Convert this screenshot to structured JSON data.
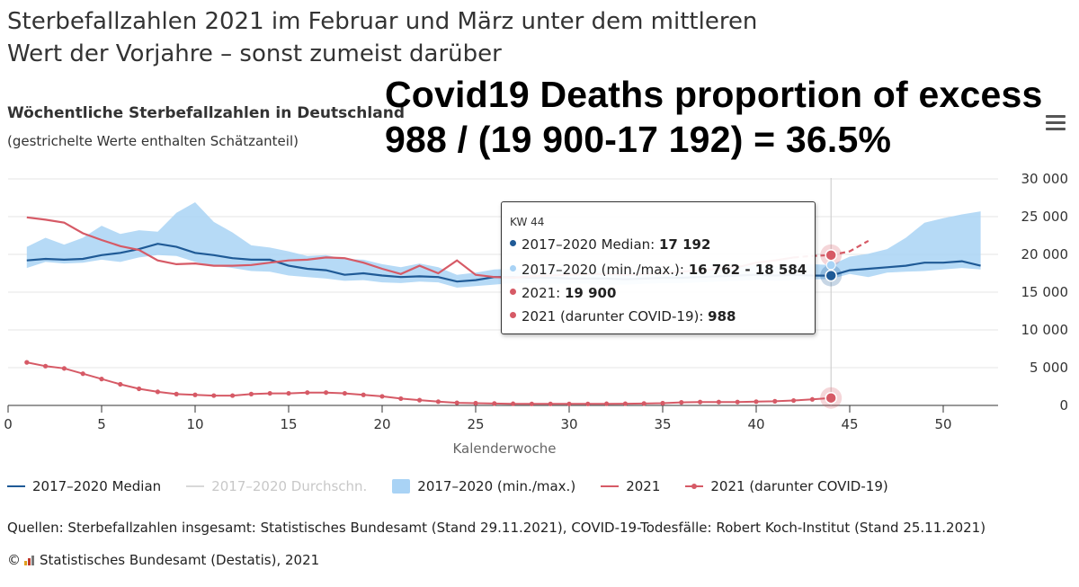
{
  "headline": {
    "line1": "Sterbefallzahlen 2021 im Februar und März unter dem mittleren",
    "line2": "Wert der Vorjahre – sonst zumeist darüber"
  },
  "overlay": {
    "line1": "Covid19 Deaths proportion of excess",
    "line2": "988 / (19 900-17 192) = 36.5%"
  },
  "subtitle": "Wöchentliche Sterbefallzahlen in Deutschland",
  "subnote": "(gestrichelte Werte enthalten Schätzanteil)",
  "tooltip": {
    "week": "KW 44",
    "median_label": "2017–2020 Median: ",
    "median_value": "17 192",
    "range_label": "2017–2020 (min./max.): ",
    "range_value": "16 762 - 18 584",
    "y2021_label": "2021: ",
    "y2021_value": "19 900",
    "covid_label": "2021 (darunter COVID-19): ",
    "covid_value": "988"
  },
  "legend": {
    "median": "2017–2020 Median",
    "mean": "2017–2020 Durchschn.",
    "range": "2017–2020 (min./max.)",
    "y2021": "2021",
    "covid": "2021 (darunter COVID-19)"
  },
  "source": "Quellen: Sterbefallzahlen insgesamt: Statistisches Bundesamt (Stand 29.11.2021), COVID-19-Todesfälle: Robert Koch-Institut (Stand 25.11.2021)",
  "copyright": {
    "symbol": "©",
    "text": "Statistisches Bundesamt (Destatis), 2021"
  },
  "colors": {
    "median": "#1f5a96",
    "range": "#a9d3f5",
    "y2021": "#d65a66",
    "covid": "#d65a66",
    "mean": "#d8d8d8"
  },
  "chart_data": {
    "type": "line",
    "title": "Wöchentliche Sterbefallzahlen in Deutschland",
    "xlabel": "Kalenderwoche",
    "ylabel": "",
    "xlim": [
      0,
      52.5
    ],
    "ylim": [
      0,
      30000
    ],
    "x_ticks": [
      0,
      5,
      10,
      15,
      20,
      25,
      30,
      35,
      40,
      45,
      50
    ],
    "y_ticks": [
      0,
      5000,
      10000,
      15000,
      20000,
      25000,
      30000
    ],
    "y_tick_labels": [
      "0",
      "5 000",
      "10 000",
      "15 000",
      "20 000",
      "25 000",
      "30 000"
    ],
    "highlight_week": 44,
    "weeks": [
      1,
      2,
      3,
      4,
      5,
      6,
      7,
      8,
      9,
      10,
      11,
      12,
      13,
      14,
      15,
      16,
      17,
      18,
      19,
      20,
      21,
      22,
      23,
      24,
      25,
      26,
      27,
      28,
      29,
      30,
      31,
      32,
      33,
      34,
      35,
      36,
      37,
      38,
      39,
      40,
      41,
      42,
      43,
      44,
      45,
      46,
      47,
      48,
      49,
      50,
      51,
      52
    ],
    "series": [
      {
        "name": "2017–2020 Median",
        "values": [
          19200,
          19400,
          19300,
          19400,
          19900,
          20200,
          20700,
          21400,
          21000,
          20200,
          19900,
          19500,
          19300,
          19300,
          18500,
          18100,
          17900,
          17300,
          17500,
          17200,
          17000,
          17100,
          17000,
          16400,
          16600,
          17000,
          17000,
          16900,
          16900,
          16800,
          16800,
          16800,
          16700,
          16800,
          16900,
          16900,
          17000,
          17100,
          17200,
          17300,
          17200,
          17300,
          17200,
          17192,
          17900,
          18100,
          18300,
          18500,
          18900,
          18900,
          19100,
          18500
        ]
      },
      {
        "name": "2017–2020 (min./max.)",
        "min": [
          18200,
          19000,
          18800,
          18900,
          19300,
          19000,
          19600,
          19900,
          19800,
          19000,
          18500,
          18200,
          17800,
          17700,
          17200,
          17000,
          16800,
          16500,
          16600,
          16300,
          16200,
          16400,
          16300,
          15600,
          15800,
          16000,
          16200,
          16200,
          16100,
          16100,
          16100,
          16000,
          16000,
          16100,
          16200,
          16200,
          16300,
          16400,
          16500,
          16600,
          16500,
          16600,
          16700,
          16762,
          17400,
          17000,
          17600,
          17700,
          17800,
          18000,
          18200,
          18000
        ],
        "max": [
          21000,
          22200,
          21300,
          22200,
          23800,
          22700,
          23200,
          23000,
          25500,
          26900,
          24300,
          22900,
          21200,
          20900,
          20400,
          19800,
          19900,
          19400,
          19300,
          18700,
          18300,
          18800,
          18300,
          17300,
          17600,
          18000,
          18100,
          17900,
          18200,
          17900,
          17900,
          17800,
          17700,
          17800,
          18000,
          18000,
          18000,
          18200,
          18300,
          18600,
          18400,
          18800,
          18700,
          18584,
          19700,
          20100,
          20700,
          22200,
          24200,
          24800,
          25300,
          25700
        ]
      },
      {
        "name": "2021",
        "values": [
          24900,
          24600,
          24200,
          22800,
          21900,
          21100,
          20600,
          19200,
          18700,
          18800,
          18500,
          18500,
          18600,
          18900,
          19200,
          19300,
          19600,
          19500,
          18900,
          18100,
          17400,
          18500,
          17500,
          19200,
          17300,
          17000,
          16900,
          17100,
          17200,
          17300,
          17400,
          17400,
          17300,
          17400,
          17500,
          17700,
          17900,
          18100,
          18300,
          18900,
          19200,
          19600,
          19800,
          19900
        ],
        "dashed_from_week": 42,
        "projection": [
          [
            44,
            19900
          ],
          [
            45,
            20400
          ],
          [
            46,
            21800
          ]
        ]
      },
      {
        "name": "2021 (darunter COVID-19)",
        "values": [
          5700,
          5200,
          4900,
          4200,
          3500,
          2800,
          2200,
          1800,
          1500,
          1400,
          1300,
          1300,
          1500,
          1600,
          1600,
          1700,
          1700,
          1600,
          1400,
          1200,
          900,
          700,
          500,
          350,
          300,
          250,
          220,
          200,
          200,
          200,
          200,
          220,
          230,
          250,
          300,
          400,
          450,
          450,
          450,
          500,
          550,
          650,
          800,
          988
        ]
      }
    ]
  }
}
